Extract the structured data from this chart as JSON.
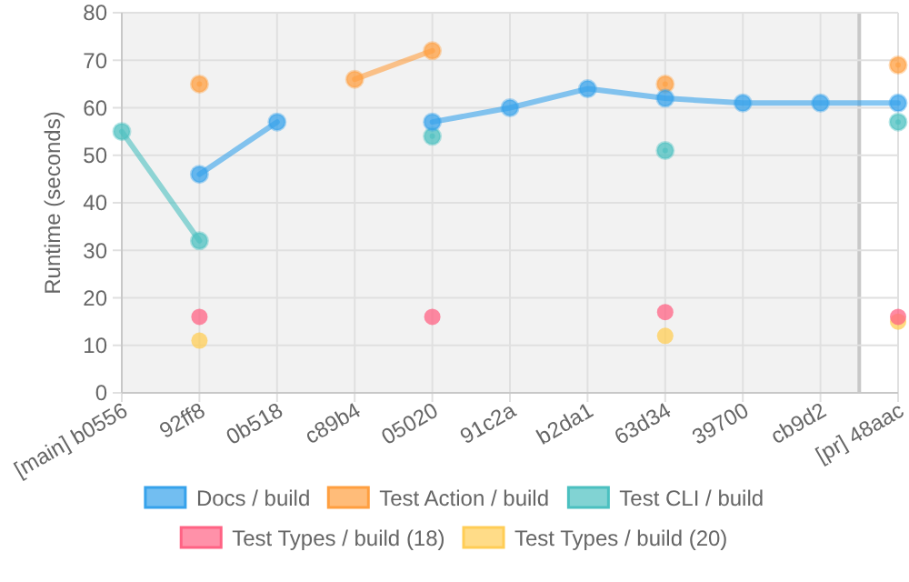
{
  "chart_data": {
    "type": "line",
    "ylabel": "Runtime (seconds)",
    "categories": [
      "[main] b0556",
      "92ff8",
      "0b518",
      "c89b4",
      "05020",
      "91c2a",
      "b2da1",
      "63d34",
      "39700",
      "cb9d2",
      "[pr] 48aac"
    ],
    "ylim": [
      0,
      80
    ],
    "yticks": [
      0,
      10,
      20,
      30,
      40,
      50,
      60,
      70,
      80
    ],
    "grid": true,
    "legend": "bottom",
    "marker": "circle",
    "line_style": "solid",
    "bands": [
      {
        "axis": "x",
        "from": "[main] b0556",
        "to": "cb9d2",
        "color": "#f2f2f2"
      }
    ],
    "series": [
      {
        "name": "Docs / build",
        "color": "#36a2eb",
        "values": [
          null,
          46,
          57,
          null,
          57,
          60,
          64,
          62,
          61,
          61,
          61
        ]
      },
      {
        "name": "Test Action / build",
        "color": "#ff9f40",
        "values": [
          null,
          65,
          null,
          66,
          72,
          null,
          null,
          65,
          null,
          null,
          69
        ]
      },
      {
        "name": "Test CLI / build",
        "color": "#4bc0c0",
        "values": [
          55,
          32,
          null,
          null,
          54,
          null,
          null,
          51,
          null,
          null,
          57
        ]
      },
      {
        "name": "Test Types / build (18)",
        "type": "scatter",
        "color": "#ff6384",
        "values": [
          null,
          16,
          null,
          null,
          16,
          null,
          null,
          17,
          null,
          null,
          16
        ]
      },
      {
        "name": "Test Types / build (20)",
        "type": "scatter",
        "color": "#ffcd56",
        "values": [
          null,
          11,
          null,
          null,
          null,
          null,
          null,
          12,
          null,
          null,
          15
        ]
      }
    ]
  }
}
